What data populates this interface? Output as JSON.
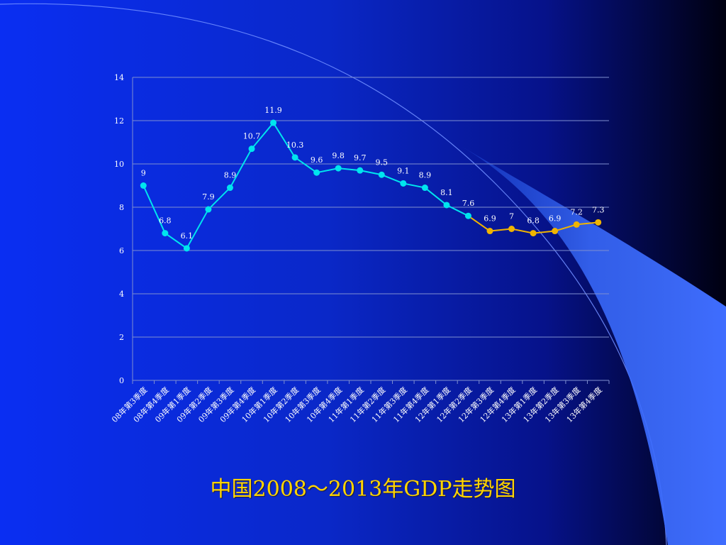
{
  "chart_data": {
    "type": "line",
    "title": "中国2008～2013年GDP走势图",
    "categories": [
      "08年第3季度",
      "08年第4季度",
      "09年第1季度",
      "09年第2季度",
      "09年第3季度",
      "09年第4季度",
      "10年第1季度",
      "10年第2季度",
      "10年第3季度",
      "10年第4季度",
      "11年第1季度",
      "11年第2季度",
      "11年第3季度",
      "11年第4季度",
      "12年第1季度",
      "12年第2季度",
      "12年第3季度",
      "12年第4季度",
      "13年第1季度",
      "13年第2季度",
      "13年第3季度",
      "13年第4季度"
    ],
    "values": [
      9,
      6.8,
      6.1,
      7.9,
      8.9,
      10.7,
      11.9,
      10.3,
      9.6,
      9.8,
      9.7,
      9.5,
      9.1,
      8.9,
      8.1,
      7.6,
      6.9,
      7,
      6.8,
      6.9,
      7.2,
      7.3
    ],
    "data_labels": [
      "9",
      "6.8",
      "6.1",
      "7.9",
      "8.9",
      "10.7",
      "11.9",
      "10.3",
      "9.6",
      "9.8",
      "9.7",
      "9.5",
      "9.1",
      "8.9",
      "8.1",
      "7.6",
      "6.9",
      "7",
      "6.8",
      "6.9",
      "7.2",
      "7.3"
    ],
    "highlight_from_index": 15,
    "ylim": [
      0,
      14
    ],
    "yticks": [
      "0",
      "2",
      "4",
      "6",
      "8",
      "10",
      "12",
      "14"
    ],
    "grid": true,
    "legend": "none",
    "colors": {
      "line": "#00e5ee",
      "highlight": "#f0b400",
      "grid": "#7f8fd0",
      "text": "#ffffff",
      "title": "#ffd400"
    }
  }
}
